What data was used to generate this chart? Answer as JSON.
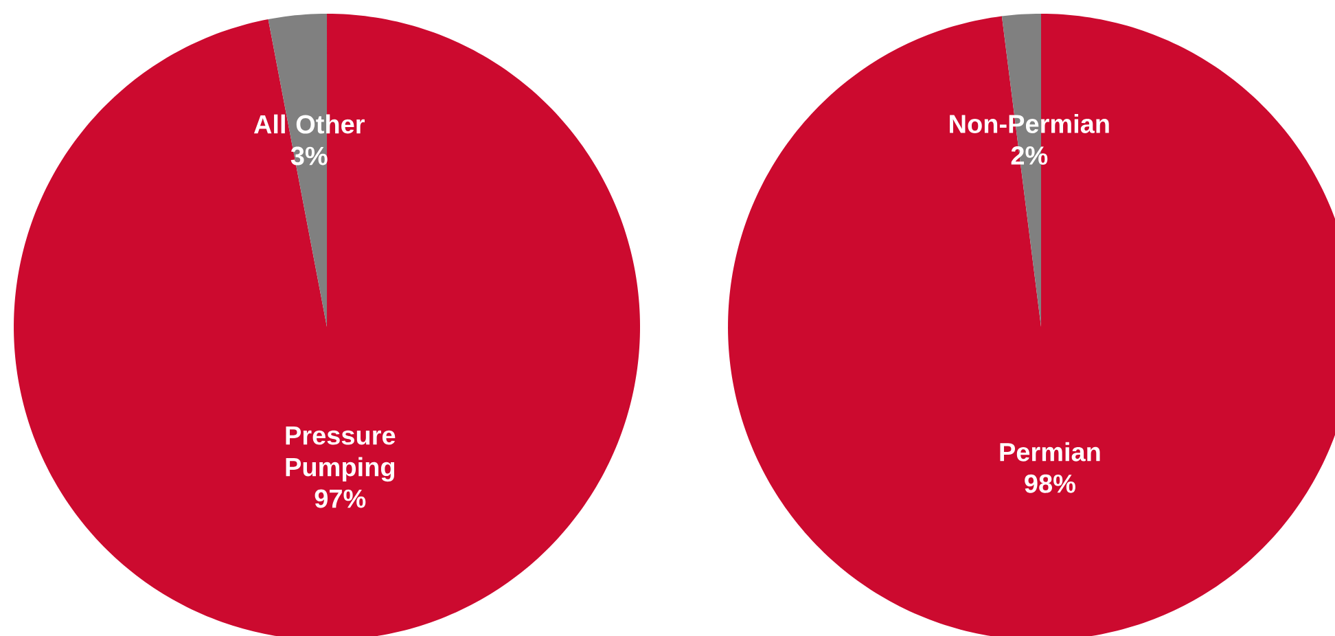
{
  "chart_data": [
    {
      "type": "pie",
      "categories": [
        "Pressure Pumping",
        "All Other"
      ],
      "values": [
        97,
        3
      ],
      "value_labels": [
        "97%",
        "3%"
      ],
      "colors": [
        "#cc0a2f",
        "#808080"
      ]
    },
    {
      "type": "pie",
      "categories": [
        "Permian",
        "Non-Permian"
      ],
      "values": [
        98,
        2
      ],
      "value_labels": [
        "98%",
        "2%"
      ],
      "colors": [
        "#cc0a2f",
        "#808080"
      ]
    }
  ]
}
